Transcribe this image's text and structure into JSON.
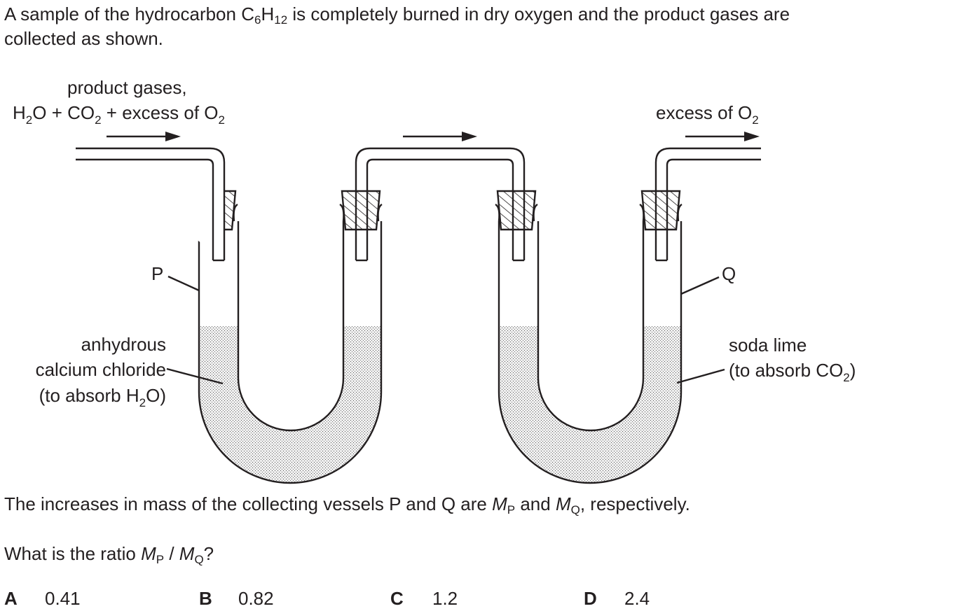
{
  "question": {
    "intro_part1": "A sample of the hydrocarbon C",
    "intro_sub1": "6",
    "intro_mid": "H",
    "intro_sub2": "12",
    "intro_part2": " is completely burned in dry oxygen and the product gases are",
    "intro_line2": "collected as shown.",
    "increase_part1": "The increases in mass of the collecting vessels P and Q are ",
    "m_symbol": "M",
    "sub_p": "P",
    "increase_and": " and ",
    "sub_q": "Q",
    "increase_part2": ", respectively.",
    "ratio_part1": "What is the ratio ",
    "ratio_slash": " / ",
    "ratio_end": "?"
  },
  "diagram": {
    "inlet_label_line1": "product gases,",
    "inlet_label_line2_parts": [
      "H",
      "2",
      "O + CO",
      "2",
      " + excess of O",
      "2"
    ],
    "outlet_label_parts": [
      "excess of O",
      "2"
    ],
    "vessel_p_label": "P",
    "vessel_q_label": "Q",
    "p_contents_line1": "anhydrous",
    "p_contents_line2": "calcium chloride",
    "p_contents_line3_parts": [
      "(to absorb H",
      "2",
      "O)"
    ],
    "q_contents_line1": "soda lime",
    "q_contents_line2_parts": [
      "(to absorb CO",
      "2",
      ")"
    ]
  },
  "options": [
    {
      "letter": "A",
      "value": "0.41"
    },
    {
      "letter": "B",
      "value": "0.82"
    },
    {
      "letter": "C",
      "value": "1.2"
    },
    {
      "letter": "D",
      "value": "2.4"
    }
  ]
}
